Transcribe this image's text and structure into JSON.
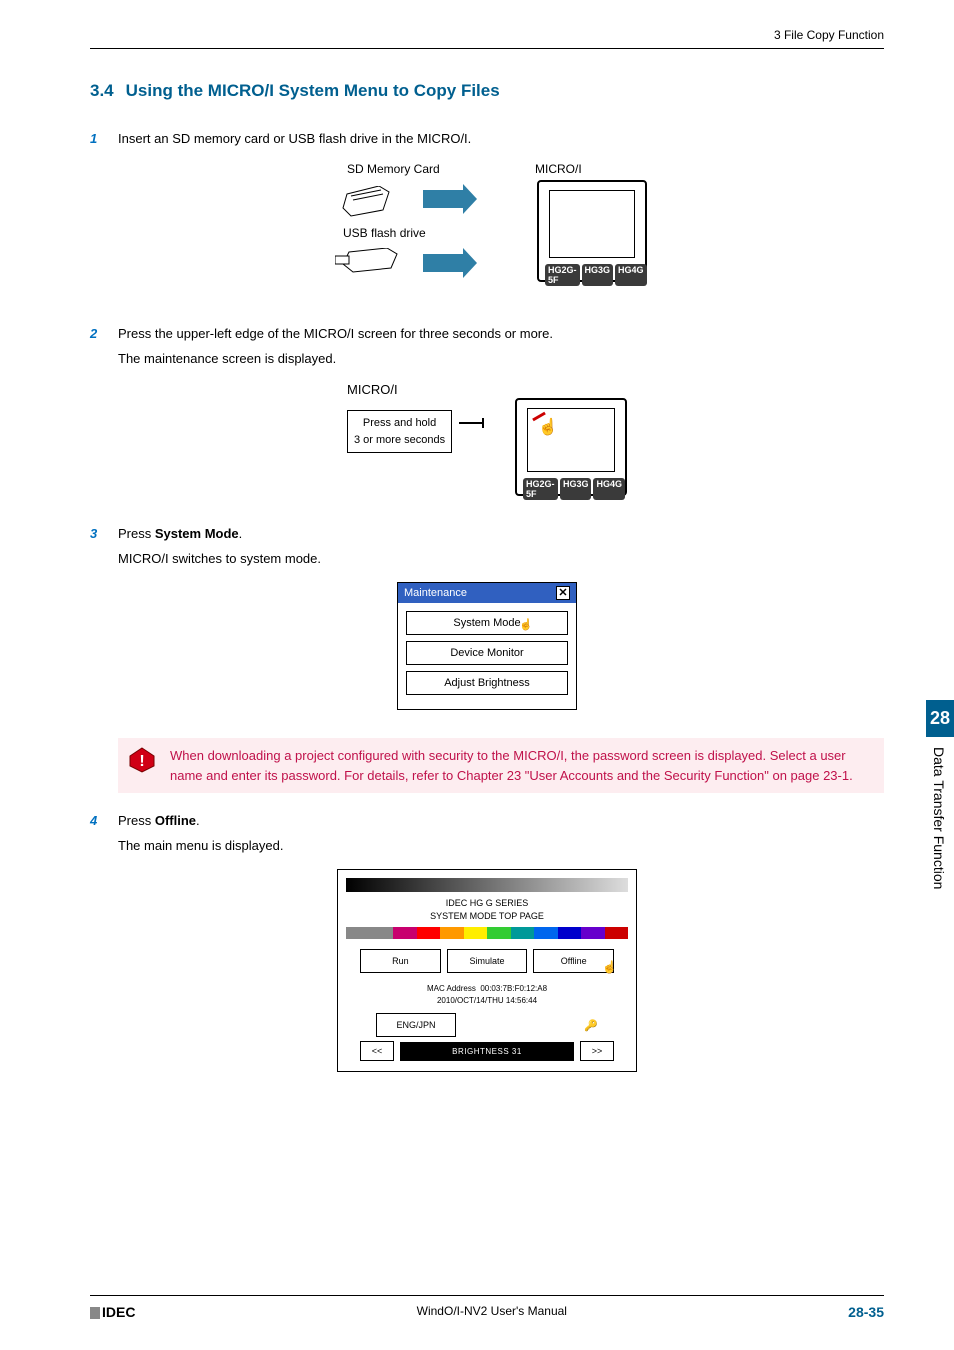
{
  "header": {
    "path": "3 File Copy Function"
  },
  "section": {
    "number": "3.4",
    "title": "Using the MICRO/I System Menu to Copy Files"
  },
  "steps": {
    "s1": {
      "num": "1",
      "text": "Insert an SD memory card or USB flash drive in the MICRO/I."
    },
    "s2": {
      "num": "2",
      "text": "Press the upper-left edge of the MICRO/I screen for three seconds or more.",
      "sub": "The maintenance screen is displayed."
    },
    "s3": {
      "num": "3",
      "text_pre": "Press ",
      "text_bold": "System Mode",
      "text_post": ".",
      "sub": "MICRO/I switches to system mode."
    },
    "s4": {
      "num": "4",
      "text_pre": "Press ",
      "text_bold": "Offline",
      "text_post": ".",
      "sub": "The main menu is displayed."
    }
  },
  "diag1": {
    "sd_label": "SD Memory Card",
    "usb_label": "USB flash drive",
    "microi_label": "MICRO/I",
    "badges": [
      "HG2G-5F",
      "HG3G",
      "HG4G"
    ],
    "arrow_color": "#2f7fa6"
  },
  "diag2": {
    "microi_label": "MICRO/I",
    "press_line1": "Press and hold",
    "press_line2": "3 or more seconds",
    "badges": [
      "HG2G-5F",
      "HG3G",
      "HG4G"
    ]
  },
  "diag3": {
    "title": "Maintenance",
    "title_bg": "#3060c0",
    "items": [
      "System Mode",
      "Device Monitor",
      "Adjust Brightness"
    ]
  },
  "callout": {
    "bg": "#fdedf0",
    "color": "#c0114a",
    "text": "When downloading a project configured with security to the MICRO/I, the password screen is displayed. Select a user name and enter its password. For details, refer to Chapter 23 \"User Accounts and the Security Function\" on page 23-1."
  },
  "diag4": {
    "title1": "IDEC HG G SERIES",
    "title2": "SYSTEM MODE TOP PAGE",
    "colorbar": [
      "#888",
      "#888",
      "#c8006e",
      "#ff0000",
      "#ff9900",
      "#ffee00",
      "#33cc33",
      "#009999",
      "#0066ee",
      "#0000cc",
      "#6600cc",
      "#cc0000"
    ],
    "btns": [
      "Run",
      "Simulate",
      "Offline"
    ],
    "mac_label": "MAC Address",
    "mac": "00:03:7B:F0:12:A8",
    "datetime": "2010/OCT/14/THU   14:56:44",
    "lang_btn": "ENG/JPN",
    "brightness": "BRIGHTNESS 31",
    "nav_prev": "<<",
    "nav_next": ">>"
  },
  "side": {
    "chapter": "28",
    "title": "Data Transfer Function"
  },
  "footer": {
    "brand": "IDEC",
    "center": "WindO/I-NV2 User's Manual",
    "page": "28-35"
  }
}
